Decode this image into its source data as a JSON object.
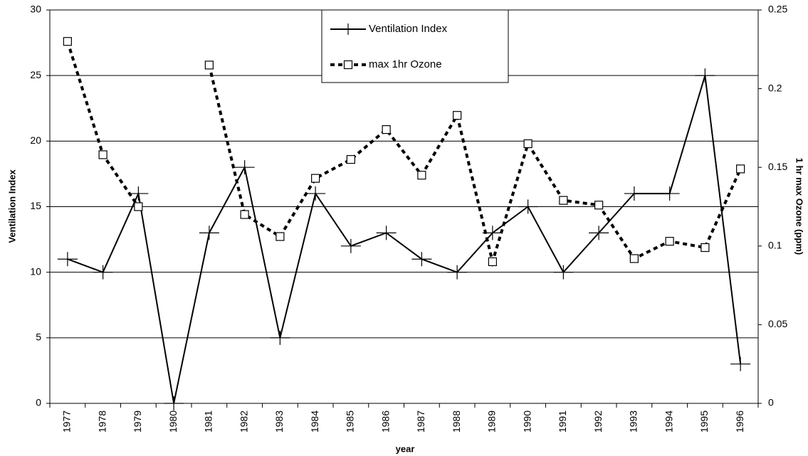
{
  "chart_data": {
    "type": "line",
    "x_label": "year",
    "y_label": "Ventilation Index",
    "y2_label": "1 hr max Ozone (ppm)",
    "categories": [
      "1977",
      "1978",
      "1979",
      "1980",
      "1981",
      "1982",
      "1983",
      "1984",
      "1985",
      "1986",
      "1987",
      "1988",
      "1989",
      "1990",
      "1991",
      "1992",
      "1993",
      "1994",
      "1995",
      "1996"
    ],
    "series": [
      {
        "name": "Ventilation Index",
        "color": "#000000",
        "marker": "plus",
        "line_style": "solid",
        "values": [
          11,
          10,
          16,
          0,
          13,
          18,
          5,
          16,
          12,
          13,
          11,
          10,
          13,
          15,
          10,
          13,
          16,
          16,
          25,
          3
        ]
      },
      {
        "name": "max 1hr Ozone",
        "color": "#000000",
        "marker": "square",
        "line_style": "dashed",
        "axis": "y2",
        "values": [
          0.23,
          0.158,
          0.125,
          null,
          0.215,
          0.12,
          0.106,
          0.143,
          0.155,
          0.174,
          0.145,
          0.183,
          0.09,
          0.165,
          0.129,
          0.126,
          0.092,
          0.103,
          0.099,
          0.149
        ]
      }
    ],
    "ylim": [
      0,
      30
    ],
    "yticks": [
      0,
      5,
      10,
      15,
      20,
      25,
      30
    ],
    "y2lim": [
      0,
      0.25
    ],
    "y2ticks": [
      0,
      0.05,
      0.1,
      0.15,
      0.2,
      0.25
    ],
    "grid": true,
    "legend": "top"
  }
}
